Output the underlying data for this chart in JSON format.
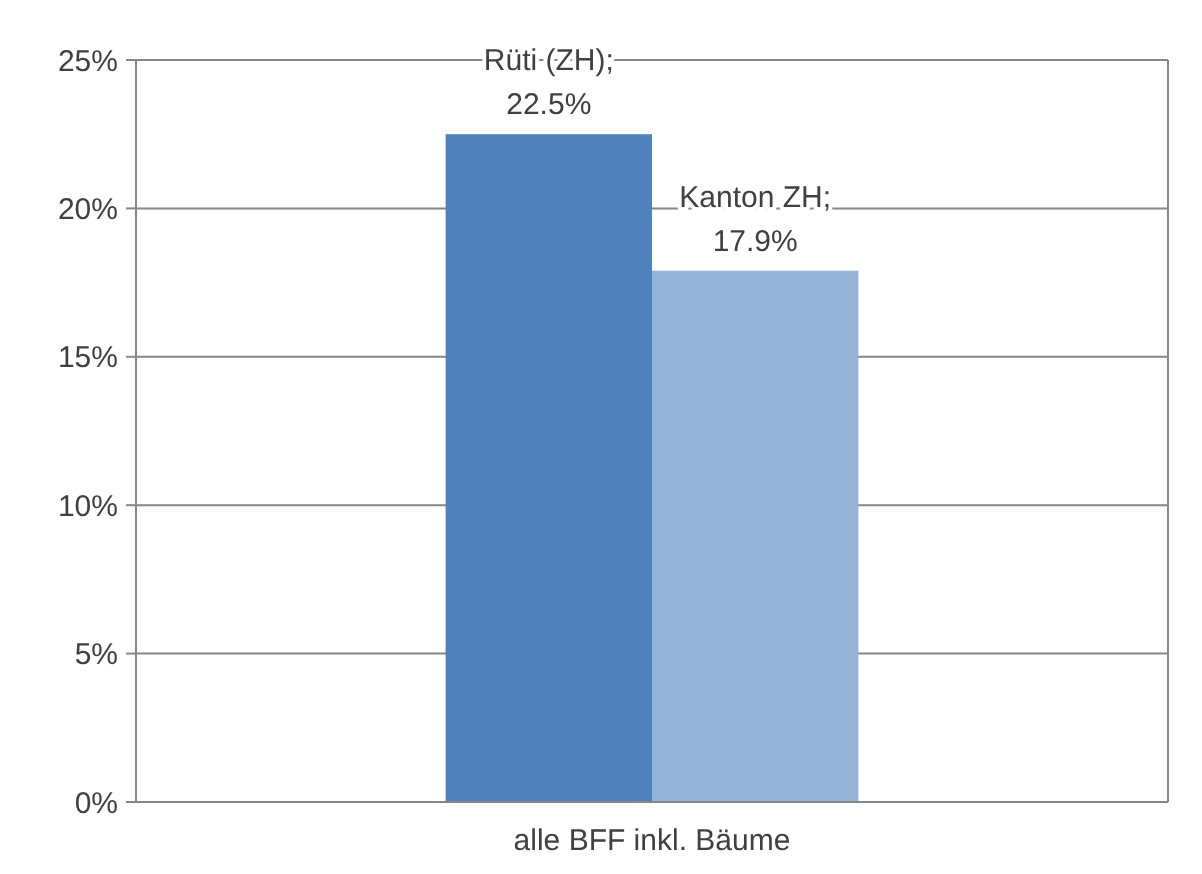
{
  "chart_data": {
    "type": "bar",
    "categories": [
      "alle BFF inkl. Bäume"
    ],
    "series": [
      {
        "name": "Rüti (ZH)",
        "color": "#4f81bd",
        "values": [
          22.5
        ],
        "value_labels": [
          ";\n22.5%"
        ]
      },
      {
        "name": "Kanton ZH",
        "color": "#95b3d7",
        "values": [
          17.9
        ],
        "value_labels": [
          ";\n17.9%"
        ]
      }
    ],
    "ylim": [
      0,
      25
    ],
    "yticks": [
      {
        "value": 0,
        "label": "0%"
      },
      {
        "value": 5,
        "label": "5%"
      },
      {
        "value": 10,
        "label": "10%"
      },
      {
        "value": 15,
        "label": "15%"
      },
      {
        "value": 20,
        "label": "20%"
      },
      {
        "value": 25,
        "label": "25%"
      }
    ],
    "grid": "y"
  }
}
